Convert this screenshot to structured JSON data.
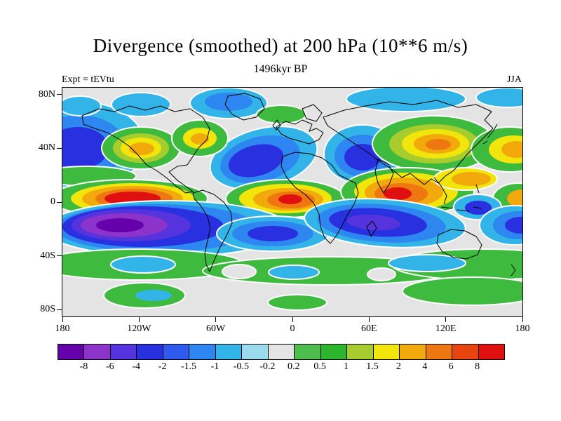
{
  "title": "Divergence (smoothed) at 200 hPa (10**6 m/s)",
  "subtitle": "1496kyr BP",
  "experiment_label": "Expt = tEVtu",
  "season_label": "JJA",
  "axes": {
    "lat_range": [
      -85,
      85
    ],
    "lon_range": [
      -180,
      180
    ],
    "lat_ticks": [
      {
        "label": "80N",
        "lat": 80
      },
      {
        "label": "40N",
        "lat": 40
      },
      {
        "label": "0",
        "lat": 0
      },
      {
        "label": "40S",
        "lat": -40
      },
      {
        "label": "80S",
        "lat": -80
      }
    ],
    "lon_ticks": [
      {
        "label": "180",
        "lon": -180
      },
      {
        "label": "120W",
        "lon": -120
      },
      {
        "label": "60W",
        "lon": -60
      },
      {
        "label": "0",
        "lon": 0
      },
      {
        "label": "60E",
        "lon": 60
      },
      {
        "label": "120E",
        "lon": 120
      },
      {
        "label": "180",
        "lon": 180
      }
    ]
  },
  "colorbar": {
    "labels": [
      "-8",
      "-6",
      "-4",
      "-2",
      "-1.5",
      "-1",
      "-0.5",
      "-0.2",
      "0.2",
      "0.5",
      "1",
      "1.5",
      "2",
      "4",
      "6",
      "8"
    ],
    "colors": [
      "#6600AA",
      "#8C33CC",
      "#5533DD",
      "#2830E0",
      "#2E5BEE",
      "#2E86F0",
      "#33B4E8",
      "#9ADCEE",
      "#E4E4E4",
      "#4DBE4D",
      "#2EB52E",
      "#A6CC2E",
      "#F2E50C",
      "#F2A90B",
      "#EE7711",
      "#E8440F",
      "#E01010"
    ]
  },
  "chart_data": {
    "type": "heatmap",
    "title": "Divergence (smoothed) at 200 hPa (10**6 m/s)",
    "subtitle": "1496kyr BP",
    "experiment": "Expt = tEVtu",
    "season": "JJA",
    "projection": "global lat-lon, 180W to 180E, ~85S to ~85N",
    "xlabel_ticks": [
      "180",
      "120W",
      "60W",
      "0",
      "60E",
      "120E",
      "180"
    ],
    "ylabel_ticks": [
      "80N",
      "40N",
      "0",
      "40S",
      "80S"
    ],
    "contour_levels": [
      -8,
      -6,
      -4,
      -2,
      -1.5,
      -1,
      -0.5,
      -0.2,
      0.2,
      0.5,
      1,
      1.5,
      2,
      4,
      6,
      8
    ],
    "palette": [
      "#6600AA",
      "#8C33CC",
      "#5533DD",
      "#2830E0",
      "#2E5BEE",
      "#2E86F0",
      "#33B4E8",
      "#9ADCEE",
      "#E4E4E4",
      "#4DBE4D",
      "#2EB52E",
      "#A6CC2E",
      "#F2E50C",
      "#F2A90B",
      "#EE7711",
      "#E8440F",
      "#E01010"
    ],
    "legend_position": "bottom horizontal colorbar",
    "notable_features": [
      {
        "value": ">8 (red maximum)",
        "location": "eastern equatorial Pacific near 0N 130W"
      },
      {
        "value": ">6 (red)",
        "location": "equatorial Africa near 0N 0E"
      },
      {
        "value": ">8 (red)",
        "location": "India / Bay of Bengal near 10N 85E"
      },
      {
        "value": "2 to 6 (orange)",
        "location": "East Asia near 40N 110E and western N. America near 40N 120W"
      },
      {
        "value": "< -8 (purple minimum)",
        "location": "South Pacific near 15S 135W"
      },
      {
        "value": "-4 to -2 (blue)",
        "location": "North Pacific near 45N 180"
      },
      {
        "value": "-4 to -2 (blue)",
        "location": "North Atlantic / Europe near 40N 30W"
      },
      {
        "value": "-4 to -2 (blue)",
        "location": "southern Indian Ocean near 20S 75E"
      },
      {
        "value": "0.2 to 1 (green band)",
        "location": "Southern Ocean 40S-60S and high southern latitudes"
      },
      {
        "value": "-0.2 to 0.2 (gray)",
        "location": "large neutral areas at high northern latitudes and subtropics"
      }
    ]
  },
  "map": {
    "background": "#E4E4E4",
    "coast_color": "#000000",
    "regions": [
      {
        "name": "north-pacific-blue",
        "shapes": [
          [
            "#33B4E8",
            26,
            82,
            92,
            62
          ],
          [
            "#2E86F0",
            24,
            84,
            66,
            45
          ],
          [
            "#2830E0",
            22,
            86,
            44,
            30
          ]
        ]
      },
      {
        "name": "alaska-cyan",
        "shapes": [
          [
            "#33B4E8",
            112,
            24,
            42,
            17
          ]
        ]
      },
      {
        "name": "topleft-cyan",
        "shapes": [
          [
            "#33B4E8",
            25,
            26,
            30,
            14
          ]
        ]
      },
      {
        "name": "arctic-blue-center",
        "shapes": [
          [
            "#33B4E8",
            237,
            22,
            55,
            22
          ],
          [
            "#2E86F0",
            237,
            20,
            34,
            13
          ]
        ]
      },
      {
        "name": "arctic-cyan-east",
        "shapes": [
          [
            "#33B4E8",
            490,
            16,
            85,
            18
          ]
        ]
      },
      {
        "name": "corner-cyan-ne",
        "shapes": [
          [
            "#33B4E8",
            635,
            14,
            45,
            14
          ]
        ]
      },
      {
        "name": "scandinavia-green",
        "shapes": [
          [
            "#3EBB3E",
            312,
            38,
            35,
            13
          ]
        ]
      },
      {
        "name": "subtropic-green-west",
        "shapes": [
          [
            "#3EBB3E",
            35,
            126,
            70,
            14
          ]
        ]
      },
      {
        "name": "west-namerica-orange",
        "shapes": [
          [
            "#3EBB3E",
            112,
            86,
            56,
            30
          ],
          [
            "#A6CC2E",
            112,
            86,
            40,
            21
          ],
          [
            "#F2E50C",
            112,
            86,
            29,
            15
          ],
          [
            "#F2A90B",
            113,
            87,
            18,
            9
          ]
        ]
      },
      {
        "name": "north-atlantic-blue",
        "shapes": [
          [
            "#33B4E8",
            287,
            100,
            78,
            42,
            -14
          ],
          [
            "#2E86F0",
            282,
            102,
            58,
            32,
            -14
          ],
          [
            "#2830E0",
            276,
            104,
            40,
            22,
            -14
          ]
        ]
      },
      {
        "name": "east-namerica-orange",
        "shapes": [
          [
            "#3EBB3E",
            196,
            72,
            40,
            26
          ],
          [
            "#F2E50C",
            196,
            72,
            24,
            15
          ],
          [
            "#F2A90B",
            196,
            73,
            13,
            8
          ]
        ]
      },
      {
        "name": "central-asia-blue",
        "shapes": [
          [
            "#33B4E8",
            428,
            95,
            55,
            42
          ],
          [
            "#2E86F0",
            428,
            97,
            40,
            30
          ],
          [
            "#2830E0",
            428,
            99,
            26,
            19
          ]
        ]
      },
      {
        "name": "east-asia-orange",
        "shapes": [
          [
            "#3EBB3E",
            530,
            80,
            88,
            40
          ],
          [
            "#A6CC2E",
            530,
            80,
            64,
            28
          ],
          [
            "#F2E50C",
            532,
            80,
            48,
            21
          ],
          [
            "#F2A90B",
            534,
            80,
            33,
            14
          ],
          [
            "#EE7711",
            536,
            81,
            18,
            8
          ]
        ]
      },
      {
        "name": "west-pacific-orange-ne",
        "shapes": [
          [
            "#3EBB3E",
            638,
            88,
            55,
            32
          ],
          [
            "#F2E50C",
            644,
            88,
            36,
            20
          ],
          [
            "#F2A90B",
            648,
            88,
            22,
            12
          ]
        ]
      },
      {
        "name": "east-pacific-red",
        "shapes": [
          [
            "#3EBB3E",
            95,
            158,
            112,
            27
          ],
          [
            "#F2E50C",
            100,
            158,
            88,
            22
          ],
          [
            "#F2A90B",
            100,
            158,
            72,
            18
          ],
          [
            "#EE7711",
            102,
            158,
            55,
            14
          ],
          [
            "#E01010",
            100,
            158,
            40,
            10
          ]
        ]
      },
      {
        "name": "africa-red",
        "shapes": [
          [
            "#3EBB3E",
            318,
            158,
            85,
            27
          ],
          [
            "#F2E50C",
            318,
            158,
            66,
            21
          ],
          [
            "#F2A90B",
            322,
            159,
            50,
            16
          ],
          [
            "#EE7711",
            326,
            160,
            34,
            12
          ],
          [
            "#E01010",
            325,
            159,
            17,
            7
          ]
        ]
      },
      {
        "name": "india-red",
        "shapes": [
          [
            "#3EBB3E",
            492,
            148,
            95,
            34
          ],
          [
            "#F2E50C",
            490,
            148,
            74,
            27
          ],
          [
            "#F2A90B",
            487,
            149,
            56,
            21
          ],
          [
            "#EE7711",
            483,
            151,
            38,
            15
          ],
          [
            "#E01010",
            478,
            151,
            20,
            9
          ]
        ]
      },
      {
        "name": "west-pacific-warm-band",
        "shapes": [
          [
            "#F2E50C",
            575,
            130,
            45,
            16
          ],
          [
            "#F2A90B",
            583,
            130,
            28,
            10
          ]
        ]
      },
      {
        "name": "edge-warm-equator-east",
        "shapes": [
          [
            "#3EBB3E",
            650,
            158,
            36,
            22
          ],
          [
            "#F2A90B",
            656,
            158,
            22,
            13
          ]
        ]
      },
      {
        "name": "south-pacific-purple",
        "shapes": [
          [
            "#33B4E8",
            150,
            201,
            175,
            40
          ],
          [
            "#2E86F0",
            135,
            200,
            145,
            34
          ],
          [
            "#2830E0",
            115,
            198,
            115,
            29
          ],
          [
            "#5533DD",
            98,
            196,
            85,
            23
          ],
          [
            "#8C33CC",
            88,
            196,
            62,
            17
          ],
          [
            "#6600AA",
            82,
            196,
            34,
            10
          ]
        ]
      },
      {
        "name": "south-atlantic-blue",
        "shapes": [
          [
            "#33B4E8",
            300,
            208,
            80,
            25
          ],
          [
            "#2E86F0",
            300,
            208,
            58,
            18
          ],
          [
            "#2830E0",
            300,
            208,
            36,
            11
          ]
        ]
      },
      {
        "name": "south-indian-blue",
        "shapes": [
          [
            "#33B4E8",
            460,
            193,
            115,
            34,
            4
          ],
          [
            "#2E86F0",
            455,
            193,
            92,
            27,
            4
          ],
          [
            "#2830E0",
            450,
            192,
            70,
            20,
            4
          ],
          [
            "#5533DD",
            444,
            192,
            38,
            11,
            4
          ]
        ]
      },
      {
        "name": "new-guinea-blue",
        "shapes": [
          [
            "#33B4E8",
            592,
            170,
            34,
            18
          ],
          [
            "#2830E0",
            593,
            171,
            19,
            10
          ]
        ]
      },
      {
        "name": "south-pacific-blue-east",
        "shapes": [
          [
            "#33B4E8",
            645,
            196,
            50,
            28
          ],
          [
            "#2E86F0",
            650,
            196,
            36,
            20
          ],
          [
            "#2830E0",
            654,
            196,
            23,
            12
          ]
        ]
      },
      {
        "name": "southern-green-band-west",
        "shapes": [
          [
            "#3EBB3E",
            110,
            252,
            150,
            22
          ]
        ]
      },
      {
        "name": "southern-green-band-center",
        "shapes": [
          [
            "#3EBB3E",
            380,
            261,
            180,
            20
          ]
        ]
      },
      {
        "name": "southern-green-band-east",
        "shapes": [
          [
            "#3EBB3E",
            600,
            252,
            130,
            22
          ]
        ]
      },
      {
        "name": "southern-cyan-1",
        "shapes": [
          [
            "#33B4E8",
            115,
            252,
            46,
            12
          ]
        ]
      },
      {
        "name": "southern-cyan-2",
        "shapes": [
          [
            "#33B4E8",
            330,
            263,
            36,
            10
          ]
        ]
      },
      {
        "name": "southern-cyan-3",
        "shapes": [
          [
            "#33B4E8",
            520,
            250,
            55,
            12
          ]
        ]
      },
      {
        "name": "southern-gap-1",
        "shapes": [
          [
            "#E4E4E4",
            252,
            262,
            24,
            10
          ]
        ]
      },
      {
        "name": "southern-gap-2",
        "shapes": [
          [
            "#E4E4E4",
            455,
            266,
            20,
            9
          ]
        ]
      },
      {
        "name": "bottom-green-west",
        "shapes": [
          [
            "#3EBB3E",
            117,
            296,
            58,
            18
          ],
          [
            "#33B4E8",
            130,
            296,
            26,
            8
          ]
        ]
      },
      {
        "name": "bottom-green-center",
        "shapes": [
          [
            "#3EBB3E",
            335,
            306,
            42,
            11
          ]
        ]
      },
      {
        "name": "bottom-green-east",
        "shapes": [
          [
            "#3EBB3E",
            585,
            290,
            100,
            20
          ]
        ]
      }
    ],
    "coastlines": [
      "M28,40 L52,30 L74,34 L96,26 L118,32 L140,26 L160,34 L182,30 L200,42 L210,58 L206,74 L194,86 L186,98 L178,110 L164,112 L152,120 L164,132 L178,142 L186,148 L176,150 L162,140 L148,128 L134,118 L120,110 L108,96 L96,84 L82,74 L64,64 L46,58 L30,52 Z",
      "M236,12 L260,8 L282,16 L288,30 L276,42 L258,46 L242,38 L232,24 Z",
      "M186,150 L200,146 L216,152 L230,163 L240,177 L242,193 L234,211 L224,229 L216,247 L210,262 L205,252 L203,236 L207,218 L211,200 L207,184 L197,168 L188,158 Z",
      "M305,56 L318,48 L332,52 L342,46 L356,52 L352,62 L362,58 L372,64 L366,74 L352,80 L338,76 L324,72 L312,66 Z",
      "M342,30 L358,24 L370,36 L362,48 L348,44 Z",
      "M300,54 L306,46 L311,54 L305,60 Z",
      "M314,98 L332,92 L352,94 L370,100 L384,110 L394,124 L406,130 L418,136 L422,150 L416,166 L406,182 L398,198 L390,212 L382,222 L374,214 L368,198 L366,180 L358,164 L346,152 L332,142 L320,128 L312,112 Z",
      "M434,198 L442,190 L448,200 L440,212 Z",
      "M372,42 L402,32 L432,26 L466,20 L500,24 L534,18 L564,28 L590,24 L612,34 L602,46 L614,58 L602,70 L590,82 L578,94 L568,106 L558,118 L546,126 L536,136 L526,130 L516,138 L506,130 L496,122 L484,128 L472,118 L460,110 L448,102 L438,94 L426,86 L414,78 L402,70 L390,62 L378,54 Z",
      "M450,102 L464,108 L472,122 L466,138 L458,150 L450,136 L446,120 Z",
      "M530,128 L540,140 L548,154 L544,166",
      "M540,170 L556,172 M562,174 L580,176 M586,170 L598,172",
      "M606,72 L614,62 L620,52 M600,80 L606,76",
      "M590,138 L594,150",
      "M536,210 L554,202 L574,204 L590,212 L598,224 L592,238 L576,244 L558,242 L542,234 L534,222 Z",
      "M640,252 L646,260 L640,268"
    ]
  }
}
